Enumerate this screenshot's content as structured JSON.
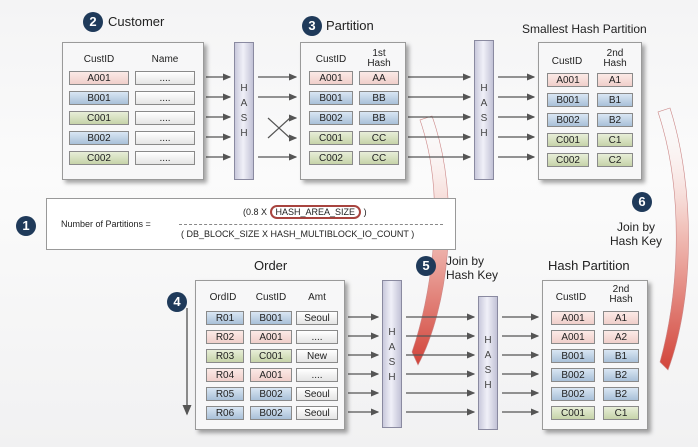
{
  "customer": {
    "badge": "2",
    "title": "Customer",
    "columns": [
      "CustID",
      "Name"
    ],
    "rows": [
      {
        "id": "A001",
        "name": "....",
        "color": "pink"
      },
      {
        "id": "B001",
        "name": "....",
        "color": "blue"
      },
      {
        "id": "C001",
        "name": "....",
        "color": "green"
      },
      {
        "id": "B002",
        "name": "....",
        "color": "blue"
      },
      {
        "id": "C002",
        "name": "....",
        "color": "green"
      }
    ]
  },
  "partition": {
    "badge": "3",
    "title": "Partition",
    "columns": [
      "CustID",
      "1st\nHash"
    ],
    "rows": [
      {
        "id": "A001",
        "hash": "AA",
        "color": "pink"
      },
      {
        "id": "B001",
        "hash": "BB",
        "color": "blue"
      },
      {
        "id": "B002",
        "hash": "BB",
        "color": "blue"
      },
      {
        "id": "C001",
        "hash": "CC",
        "color": "green"
      },
      {
        "id": "C002",
        "hash": "CC",
        "color": "green"
      }
    ]
  },
  "smallest": {
    "title": "Smallest Hash Partition",
    "columns": [
      "CustID",
      "2nd\nHash"
    ],
    "rows": [
      {
        "id": "A001",
        "hash": "A1",
        "color": "pink"
      },
      {
        "id": "B001",
        "hash": "B1",
        "color": "blue"
      },
      {
        "id": "B002",
        "hash": "B2",
        "color": "blue"
      },
      {
        "id": "C001",
        "hash": "C1",
        "color": "green"
      },
      {
        "id": "C002",
        "hash": "C2",
        "color": "green"
      }
    ]
  },
  "formula": {
    "badge": "1",
    "label": "Number of Partitions =",
    "numerator_prefix": "(0.8 X",
    "numerator_highlight": "HASH_AREA_SIZE",
    "numerator_suffix": ")",
    "denominator": "( DB_BLOCK_SIZE X  HASH_MULTIBLOCK_IO_COUNT )"
  },
  "order": {
    "badge": "4",
    "title": "Order",
    "columns": [
      "OrdID",
      "CustID",
      "Amt"
    ],
    "rows": [
      {
        "ord": "R01",
        "id": "B001",
        "amt": "Seoul",
        "color": "blue"
      },
      {
        "ord": "R02",
        "id": "A001",
        "amt": "....",
        "color": "pink"
      },
      {
        "ord": "R03",
        "id": "C001",
        "amt": "New",
        "color": "green"
      },
      {
        "ord": "R04",
        "id": "A001",
        "amt": "....",
        "color": "pink"
      },
      {
        "ord": "R05",
        "id": "B002",
        "amt": "Seoul",
        "color": "blue"
      },
      {
        "ord": "R06",
        "id": "B002",
        "amt": "Seoul",
        "color": "blue"
      }
    ]
  },
  "hash_partition": {
    "title": "Hash Partition",
    "columns": [
      "CustID",
      "2nd\nHash"
    ],
    "rows": [
      {
        "id": "A001",
        "hash": "A1",
        "color": "pink"
      },
      {
        "id": "A001",
        "hash": "A2",
        "color": "pink"
      },
      {
        "id": "B001",
        "hash": "B1",
        "color": "blue"
      },
      {
        "id": "B002",
        "hash": "B2",
        "color": "blue"
      },
      {
        "id": "B002",
        "hash": "B2",
        "color": "blue"
      },
      {
        "id": "C001",
        "hash": "C1",
        "color": "green"
      }
    ]
  },
  "hash_label": "HASH",
  "join5": {
    "badge": "5",
    "text": "Join by\nHash Key"
  },
  "join6": {
    "badge": "6",
    "text": "Join by\nHash Key"
  },
  "colors": {
    "badge": "#1f3a5a",
    "highlight": "#a8443f",
    "swoosh": "#d2443a"
  }
}
